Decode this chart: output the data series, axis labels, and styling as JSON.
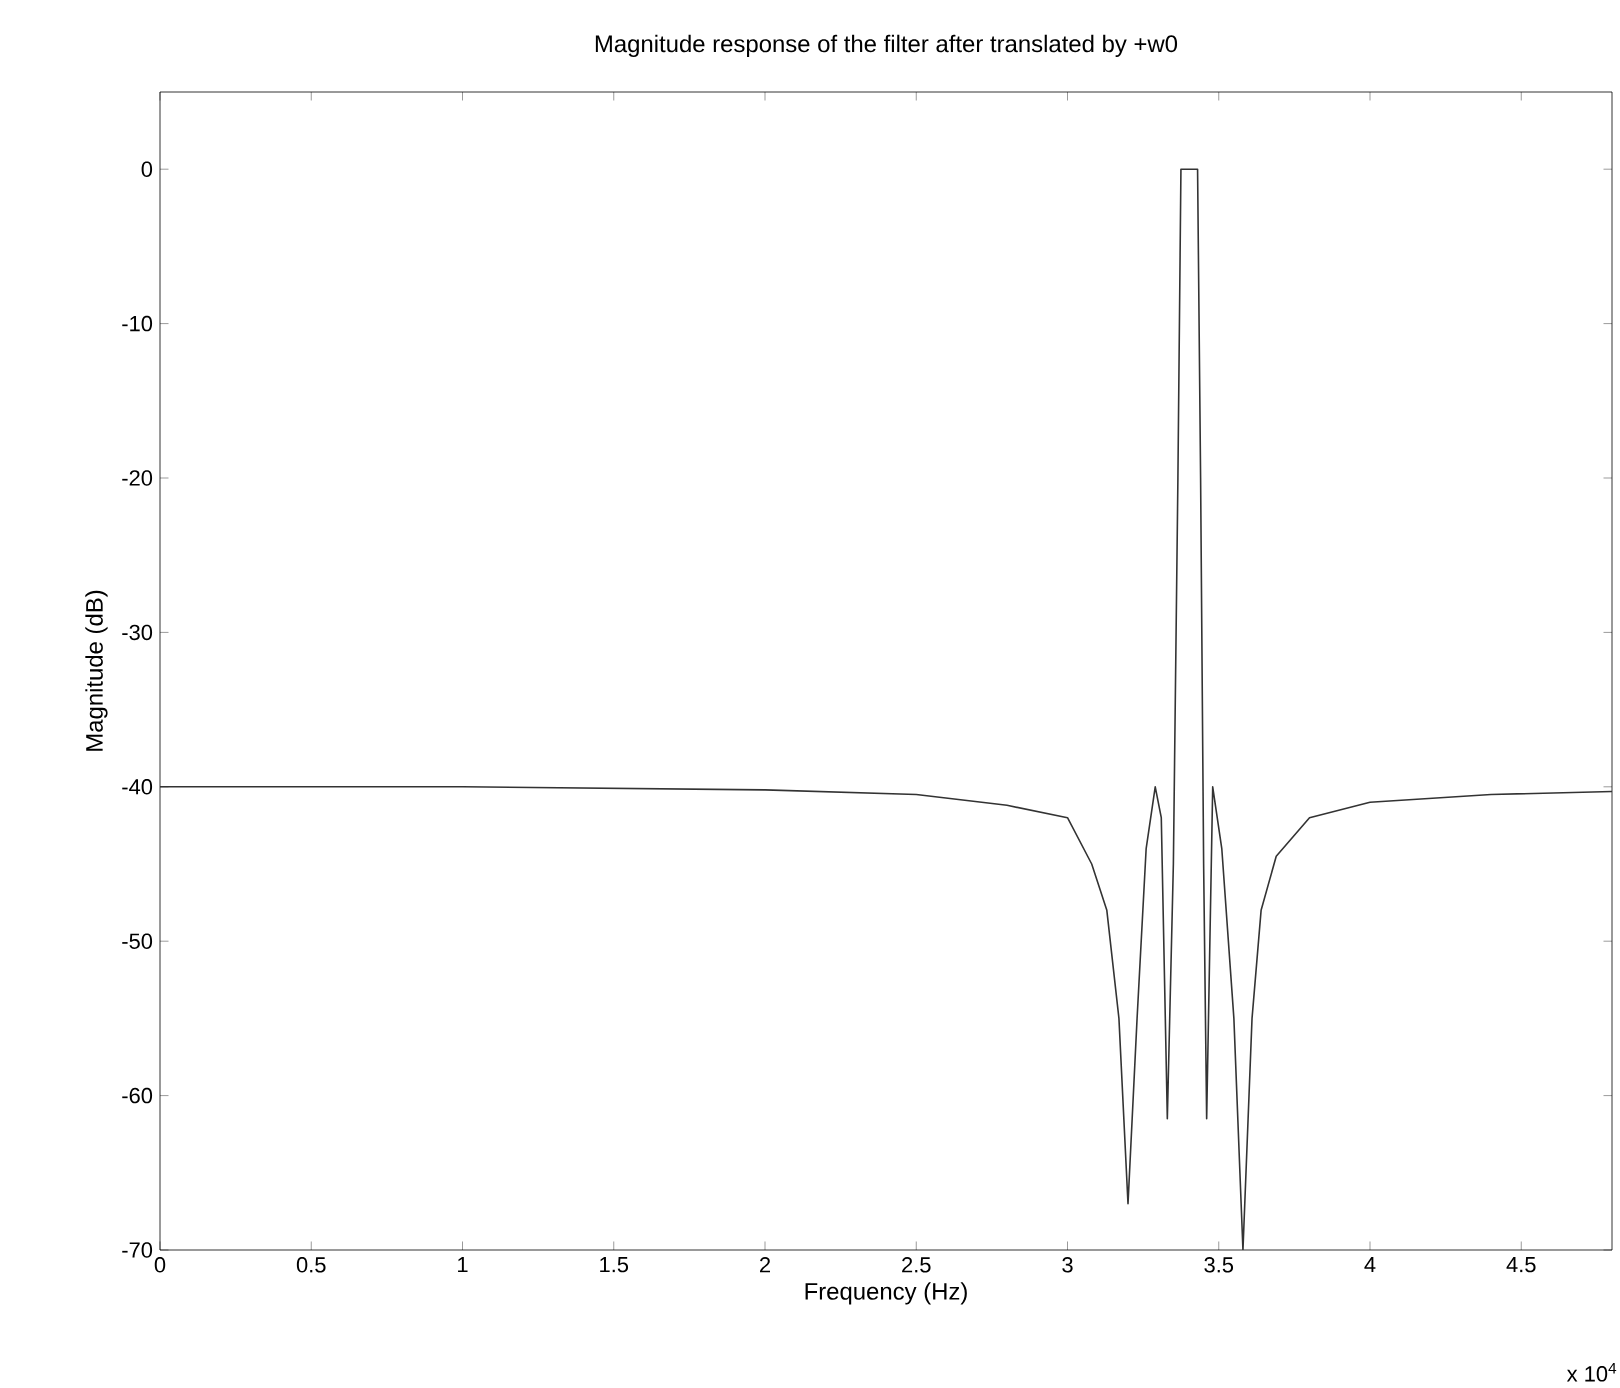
{
  "chart_data": {
    "type": "line",
    "title": "Magnitude response of the filter after translated by +w0",
    "xlabel": "Frequency (Hz)",
    "ylabel": "Magnitude (dB)",
    "x": [
      0,
      1,
      2,
      2.5,
      2.8,
      3.0,
      3.08,
      3.13,
      3.17,
      3.2,
      3.23,
      3.26,
      3.29,
      3.31,
      3.33,
      3.35,
      3.365,
      3.375,
      3.43,
      3.44,
      3.45,
      3.46,
      3.48,
      3.51,
      3.55,
      3.58,
      3.61,
      3.64,
      3.69,
      3.8,
      4.0,
      4.4,
      4.8
    ],
    "series": [
      {
        "color": "#333333",
        "values": [
          -40,
          -40,
          -40.2,
          -40.5,
          -41.2,
          -42,
          -45,
          -48,
          -55,
          -67,
          -55,
          -44,
          -40,
          -42,
          -61.5,
          -45,
          -20,
          0,
          0,
          -20,
          -45,
          -61.5,
          -40,
          -44,
          -55,
          -70,
          -55,
          -48,
          -44.5,
          -42,
          -41,
          -40.5,
          -40.3
        ]
      }
    ],
    "xlim": [
      0,
      4.8
    ],
    "ylim": [
      -70,
      5
    ],
    "xticks": [
      0,
      0.5,
      1,
      1.5,
      2,
      2.5,
      3,
      3.5,
      4,
      4.5
    ],
    "yticks": [
      -70,
      -60,
      -50,
      -40,
      -30,
      -20,
      -10,
      0
    ],
    "grid": false,
    "annotations": [
      "x 10$^{4}$"
    ]
  }
}
